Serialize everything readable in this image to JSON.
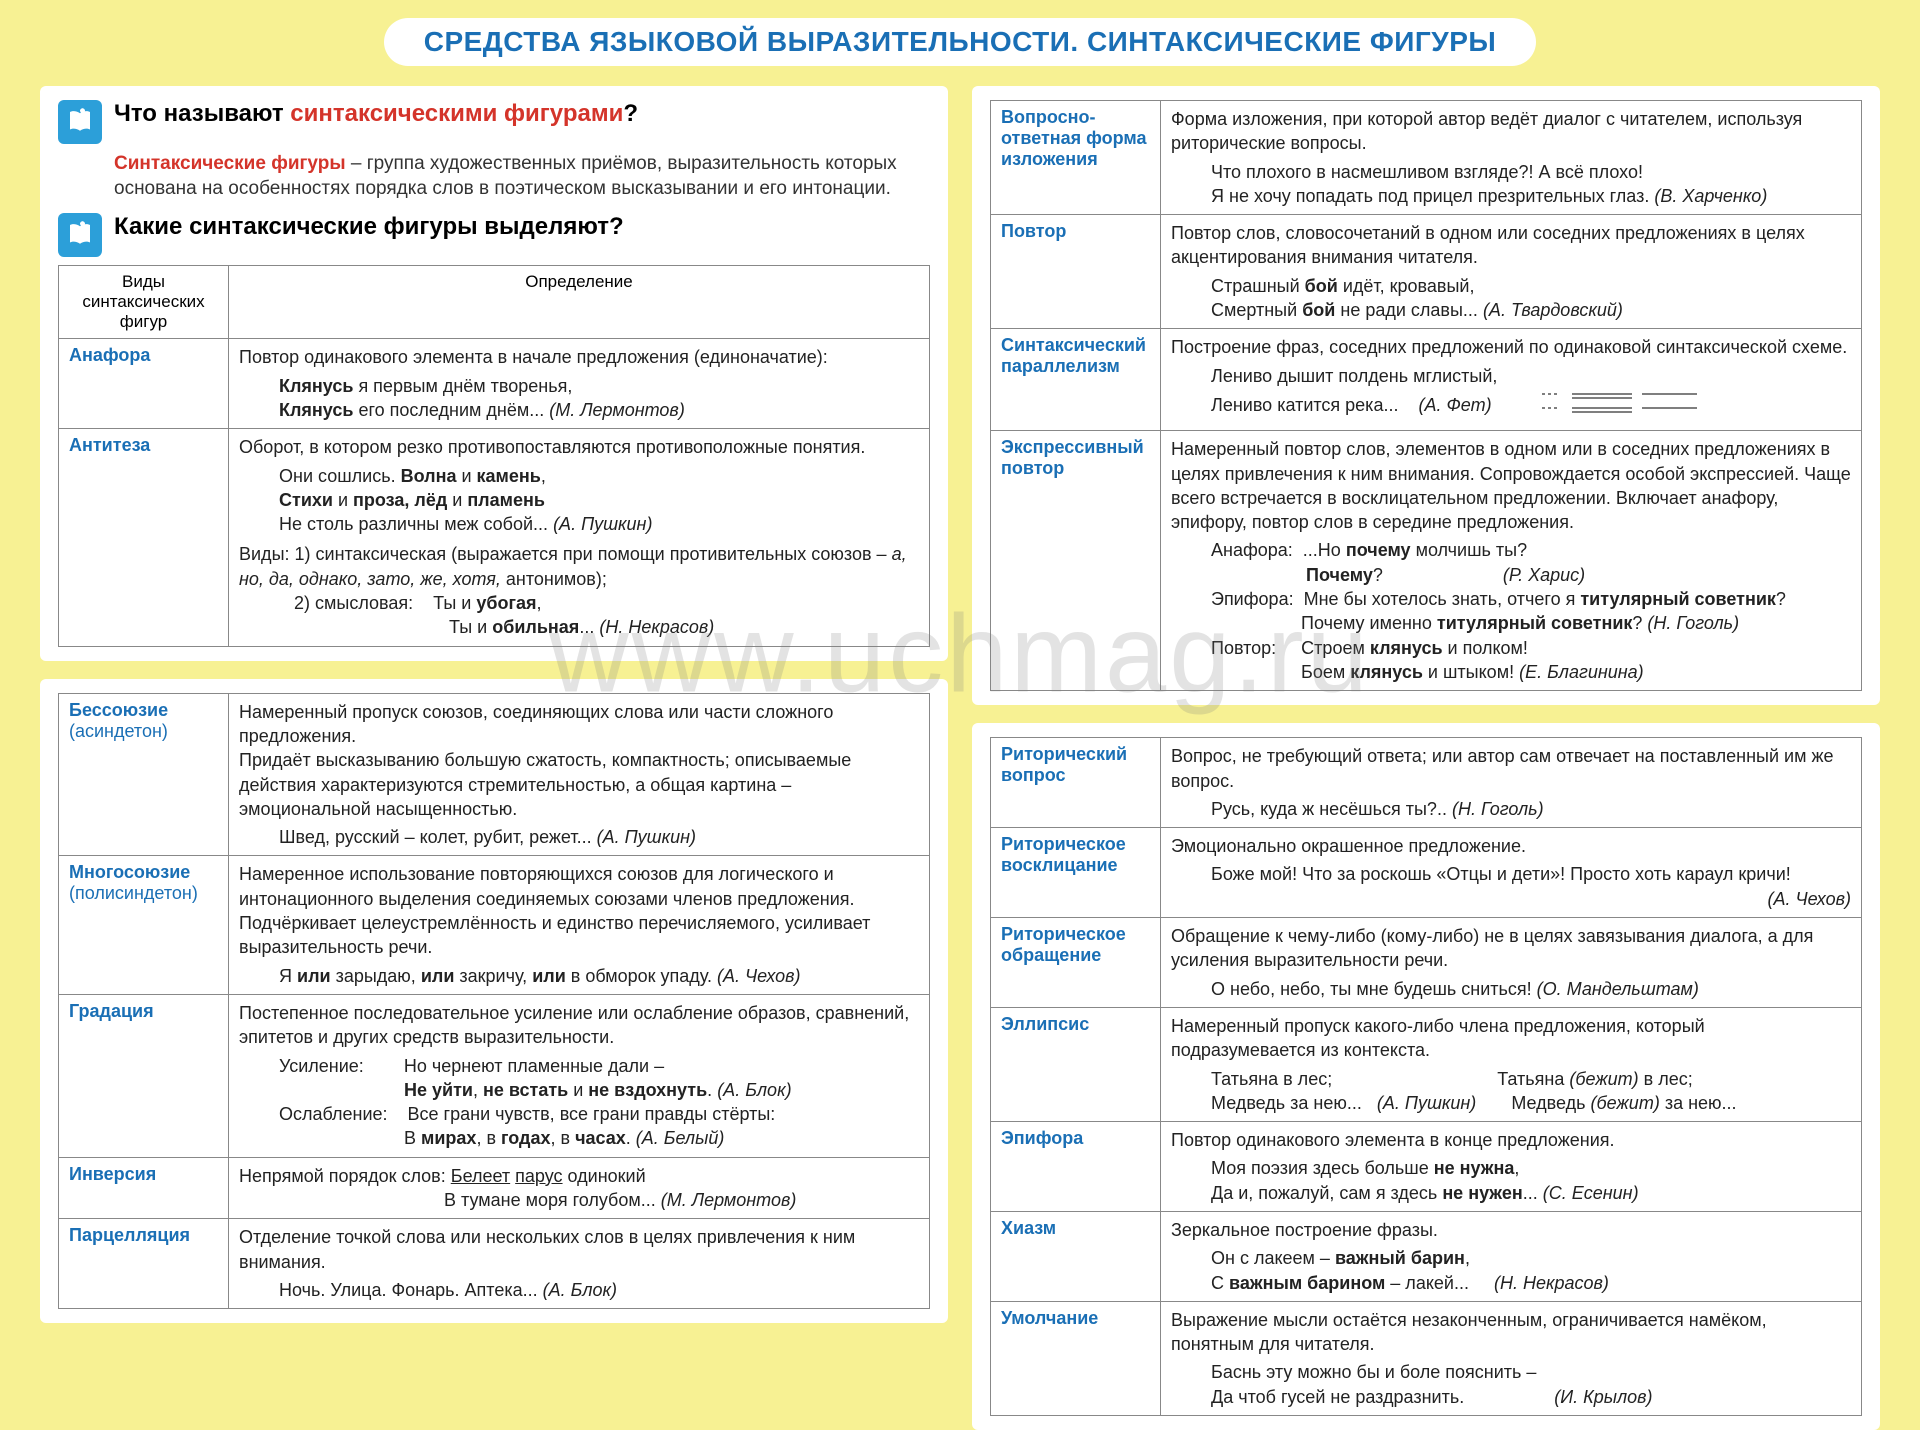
{
  "colors": {
    "page_bg": "#f7f193",
    "panel_bg": "#ffffff",
    "title_color": "#1a6fb5",
    "term_color": "#1a6fb5",
    "highlight_color": "#d4342a",
    "icon_bg": "#2c9fd9",
    "border_color": "#888888"
  },
  "typography": {
    "title_fontsize": 28,
    "question_fontsize": 24,
    "body_fontsize": 18
  },
  "title": "СРЕДСТВА ЯЗЫКОВОЙ ВЫРАЗИТЕЛЬНОСТИ.  СИНТАКСИЧЕСКИЕ ФИГУРЫ",
  "watermark": "www.uchmag.ru",
  "q1_prefix": "Что называют ",
  "q1_highlight": "синтаксическими фигурами",
  "q1_suffix": "?",
  "def_term": "Синтаксические фигуры",
  "def_rest": " – группа художественных приёмов, выразительность которых основана на особенностях порядка слов в поэтическом высказывании и его интонации.",
  "q2": "Какие синтаксические фигуры выделяют?",
  "th1": "Виды синтаксических фигур",
  "th2": "Определение",
  "left_top": [
    {
      "term": "Анафора",
      "def": "Повтор одинакового элемента в начале предложения (единоначатие):",
      "ex": "<b>Клянусь</b> я первым днём творенья,<br><b>Клянусь</b> его последним днём... <i>(М. Лермонтов)</i>"
    },
    {
      "term": "Антитеза",
      "def": "Оборот, в котором резко противопоставляются противоположные понятия.",
      "ex": "Они сошлись. <b>Волна</b> и <b>камень</b>,<br><b>Стихи</b> и <b>проза, лёд</b> и <b>пламень</b><br>Не столь различны меж собой... <i>(А. Пушкин)</i>",
      "extra": "Виды: 1) синтаксическая (выражается при помощи противительных союзов – <i>а, но, да, однако, зато, же, хотя,</i> антонимов);<br>&nbsp;&nbsp;&nbsp;&nbsp;&nbsp;&nbsp;&nbsp;&nbsp;&nbsp;&nbsp;&nbsp;2) смысловая:&nbsp;&nbsp;&nbsp;&nbsp;Ты и <b>убогая</b>,<br>&nbsp;&nbsp;&nbsp;&nbsp;&nbsp;&nbsp;&nbsp;&nbsp;&nbsp;&nbsp;&nbsp;&nbsp;&nbsp;&nbsp;&nbsp;&nbsp;&nbsp;&nbsp;&nbsp;&nbsp;&nbsp;&nbsp;&nbsp;&nbsp;&nbsp;&nbsp;&nbsp;&nbsp;&nbsp;&nbsp;&nbsp;&nbsp;&nbsp;&nbsp;&nbsp;&nbsp;&nbsp;&nbsp;&nbsp;&nbsp;&nbsp;&nbsp;Ты и <b>обильная</b>... <i>(Н. Некрасов)</i>"
    }
  ],
  "left_bottom": [
    {
      "term": "Бессоюзие",
      "sub": "(асиндетон)",
      "def": "Намеренный пропуск союзов, соединяющих слова или части сложного предложения.<br>Придаёт высказыванию большую сжатость, компактность; описываемые действия характеризуются стремительностью, а общая картина – эмоциональной насыщенностью.",
      "ex": "Швед, русский – колет, рубит, режет... <i>(А. Пушкин)</i>"
    },
    {
      "term": "Многосоюзие",
      "sub": "(полисиндетон)",
      "def": "Намеренное использование повторяющихся союзов для логического и интонационного выделения соединяемых союзами членов предложения.<br>Подчёркивает целеустремлённость и единство перечисляемого, усиливает выразительность речи.",
      "ex": "Я <b>или</b> зарыдаю, <b>или</b> закричу, <b>или</b> в обморок упаду. <i>(А. Чехов)</i>"
    },
    {
      "term": "Градация",
      "def": "Постепенное последовательное усиление или ослабление образов, сравнений, эпитетов и других средств выразительности.",
      "ex": "Усиление:&nbsp;&nbsp;&nbsp;&nbsp;&nbsp;&nbsp;&nbsp;&nbsp;Но чернеют пламенные дали –<br>&nbsp;&nbsp;&nbsp;&nbsp;&nbsp;&nbsp;&nbsp;&nbsp;&nbsp;&nbsp;&nbsp;&nbsp;&nbsp;&nbsp;&nbsp;&nbsp;&nbsp;&nbsp;&nbsp;&nbsp;&nbsp;&nbsp;&nbsp;&nbsp;&nbsp;<b>Не уйти</b>, <b>не встать</b> и <b>не вздохнуть</b>. <i>(А. Блок)</i><br>Ослабление:&nbsp;&nbsp;&nbsp;&nbsp;Все грани чувств, все грани правды стёрты:<br>&nbsp;&nbsp;&nbsp;&nbsp;&nbsp;&nbsp;&nbsp;&nbsp;&nbsp;&nbsp;&nbsp;&nbsp;&nbsp;&nbsp;&nbsp;&nbsp;&nbsp;&nbsp;&nbsp;&nbsp;&nbsp;&nbsp;&nbsp;&nbsp;&nbsp;В <b>мирах</b>, в <b>годах</b>, в <b>часах</b>. <i>(А. Белый)</i>"
    },
    {
      "term": "Инверсия",
      "def": "Непрямой порядок слов: <u>Белеет</u> <u>парус</u> одинокий<br>&nbsp;&nbsp;&nbsp;&nbsp;&nbsp;&nbsp;&nbsp;&nbsp;&nbsp;&nbsp;&nbsp;&nbsp;&nbsp;&nbsp;&nbsp;&nbsp;&nbsp;&nbsp;&nbsp;&nbsp;&nbsp;&nbsp;&nbsp;&nbsp;&nbsp;&nbsp;&nbsp;&nbsp;&nbsp;&nbsp;&nbsp;&nbsp;&nbsp;&nbsp;&nbsp;&nbsp;&nbsp;&nbsp;&nbsp;&nbsp;&nbsp;В тумане моря голубом... <i>(М. Лермонтов)</i>"
    },
    {
      "term": "Парцелляция",
      "def": "Отделение точкой слова или нескольких слов в целях привлечения к ним внимания.",
      "ex": "Ночь. Улица. Фонарь. Аптека... <i>(А. Блок)</i>"
    }
  ],
  "right_top": [
    {
      "term": "Вопросно-ответная форма изложения",
      "def": "Форма изложения, при которой автор ведёт диалог с читателем, используя риторические вопросы.",
      "ex": "Что плохого в насмешливом взгляде?! А всё плохо!<br>Я не хочу попадать под прицел презрительных глаз. <i>(В. Харченко)</i>"
    },
    {
      "term": "Повтор",
      "def": "Повтор слов, словосочетаний в одном или соседних предложениях в целях акцентирования внимания читателя.",
      "ex": "Страшный <b>бой</b> идёт, кровавый,<br>Смертный <b>бой</b> не ради славы... <i>(А. Твардовский)</i>"
    },
    {
      "term": "Синтаксический параллелизм",
      "def": "Построение фраз, соседних предложений по одинаковой синтаксической схеме.",
      "ex": "Лениво дышит полдень мглистый,<br>Лениво катится река...&nbsp;&nbsp;&nbsp;&nbsp;<i>(А. Фет)</i>&nbsp;&nbsp;&nbsp;&nbsp;&nbsp;&nbsp;<span class='lines-deco'><svg width='160' height='30'><g stroke='#555' stroke-width='1.5' fill='none'><line x1='0' y1='6' x2='18' y2='6' stroke-dasharray='3,3'/><line x1='0' y1='20' x2='18' y2='20' stroke-dasharray='3,3'/><line x1='30' y1='6' x2='90' y2='6'/><line x1='30' y1='10' x2='90' y2='10'/><line x1='30' y1='20' x2='90' y2='20'/><line x1='30' y1='24' x2='90' y2='24'/><line x1='100' y1='6' x2='155' y2='6'/><line x1='100' y1='20' x2='155' y2='20'/></g></svg></span>"
    },
    {
      "term": "Экспрессивный повтор",
      "def": "Намеренный повтор слов, элементов в одном или в соседних предложениях в целях привлечения к ним внимания. Сопровождается особой экспрессией. Чаще всего встречается в восклицательном предложении. Включает анафору, эпифору, повтор слов в середине предложения.",
      "ex": "Анафора:&nbsp;&nbsp;...Но <b>почему</b> молчишь ты?<br>&nbsp;&nbsp;&nbsp;&nbsp;&nbsp;&nbsp;&nbsp;&nbsp;&nbsp;&nbsp;&nbsp;&nbsp;&nbsp;&nbsp;&nbsp;&nbsp;&nbsp;&nbsp;&nbsp;<b>Почему</b>?&nbsp;&nbsp;&nbsp;&nbsp;&nbsp;&nbsp;&nbsp;&nbsp;&nbsp;&nbsp;&nbsp;&nbsp;&nbsp;&nbsp;&nbsp;&nbsp;&nbsp;&nbsp;&nbsp;&nbsp;&nbsp;&nbsp;&nbsp;&nbsp;<i>(Р. Харис)</i><br>Эпифора:&nbsp;&nbsp;Мне бы хотелось знать, отчего я <b>титулярный советник</b>?<br>&nbsp;&nbsp;&nbsp;&nbsp;&nbsp;&nbsp;&nbsp;&nbsp;&nbsp;&nbsp;&nbsp;&nbsp;&nbsp;&nbsp;&nbsp;&nbsp;&nbsp;&nbsp;Почему именно <b>титулярный советник</b>? <i>(Н. Гоголь)</i><br>Повтор:&nbsp;&nbsp;&nbsp;&nbsp;&nbsp;Строем <b>клянусь</b> и полком!<br>&nbsp;&nbsp;&nbsp;&nbsp;&nbsp;&nbsp;&nbsp;&nbsp;&nbsp;&nbsp;&nbsp;&nbsp;&nbsp;&nbsp;&nbsp;&nbsp;&nbsp;&nbsp;Боем <b>клянусь</b> и штыком! <i>(Е. Благинина)</i>"
    }
  ],
  "right_bottom": [
    {
      "term": "Риторический вопрос",
      "def": "Вопрос, не требующий ответа; или автор сам отвечает на поставленный им же вопрос.",
      "ex": "Русь, куда ж несёшься ты?.. <i>(Н. Гоголь)</i>"
    },
    {
      "term": "Риторическое восклицание",
      "def": "Эмоционально окрашенное предложение.",
      "ex": "Боже мой! Что за роскошь «Отцы и дети»! Просто хоть караул кричи!<br><span style='float:right'><i>(А. Чехов)</i></span>"
    },
    {
      "term": "Риторическое обращение",
      "def": "Обращение к чему-либо (кому-либо) не в целях завязывания диалога, а для усиления выразительности речи.",
      "ex": "О небо, небо, ты мне будешь сниться! <i>(О. Мандельштам)</i>"
    },
    {
      "term": "Эллипсис",
      "def": "Намеренный пропуск какого-либо члена предложения, который подразумевается из контекста.",
      "ex": "Татьяна в лес;&nbsp;&nbsp;&nbsp;&nbsp;&nbsp;&nbsp;&nbsp;&nbsp;&nbsp;&nbsp;&nbsp;&nbsp;&nbsp;&nbsp;&nbsp;&nbsp;&nbsp;&nbsp;&nbsp;&nbsp;&nbsp;&nbsp;&nbsp;&nbsp;&nbsp;&nbsp;&nbsp;&nbsp;&nbsp;&nbsp;&nbsp;&nbsp;&nbsp;Татьяна <i>(бежит)</i> в лес;<br>Медведь за нею...&nbsp;&nbsp;&nbsp;<i>(А. Пушкин)</i>&nbsp;&nbsp;&nbsp;&nbsp;&nbsp;&nbsp;&nbsp;Медведь <i>(бежит)</i> за нею..."
    },
    {
      "term": "Эпифора",
      "def": "Повтор одинакового элемента в конце предложения.",
      "ex": "Моя поэзия здесь больше <b>не нужна</b>,<br>Да и, пожалуй, сам я здесь <b>не нужен</b>... <i>(С. Есенин)</i>"
    },
    {
      "term": "Хиазм",
      "def": "Зеркальное построение фразы.",
      "ex": "Он с лакеем – <b>важный барин</b>,<br>С <b>важным барином</b> – лакей...&nbsp;&nbsp;&nbsp;&nbsp;&nbsp;<i>(Н. Некрасов)</i>"
    },
    {
      "term": "Умолчание",
      "def": "Выражение мысли остаётся незаконченным, ограничивается намёком, понятным для читателя.",
      "ex": "Баснь эту можно бы и боле пояснить –<br>Да чтоб гусей не раздразнить.&nbsp;&nbsp;&nbsp;&nbsp;&nbsp;&nbsp;&nbsp;&nbsp;&nbsp;&nbsp;&nbsp;&nbsp;&nbsp;&nbsp;&nbsp;&nbsp;&nbsp;&nbsp;<i>(И. Крылов)</i>"
    }
  ]
}
